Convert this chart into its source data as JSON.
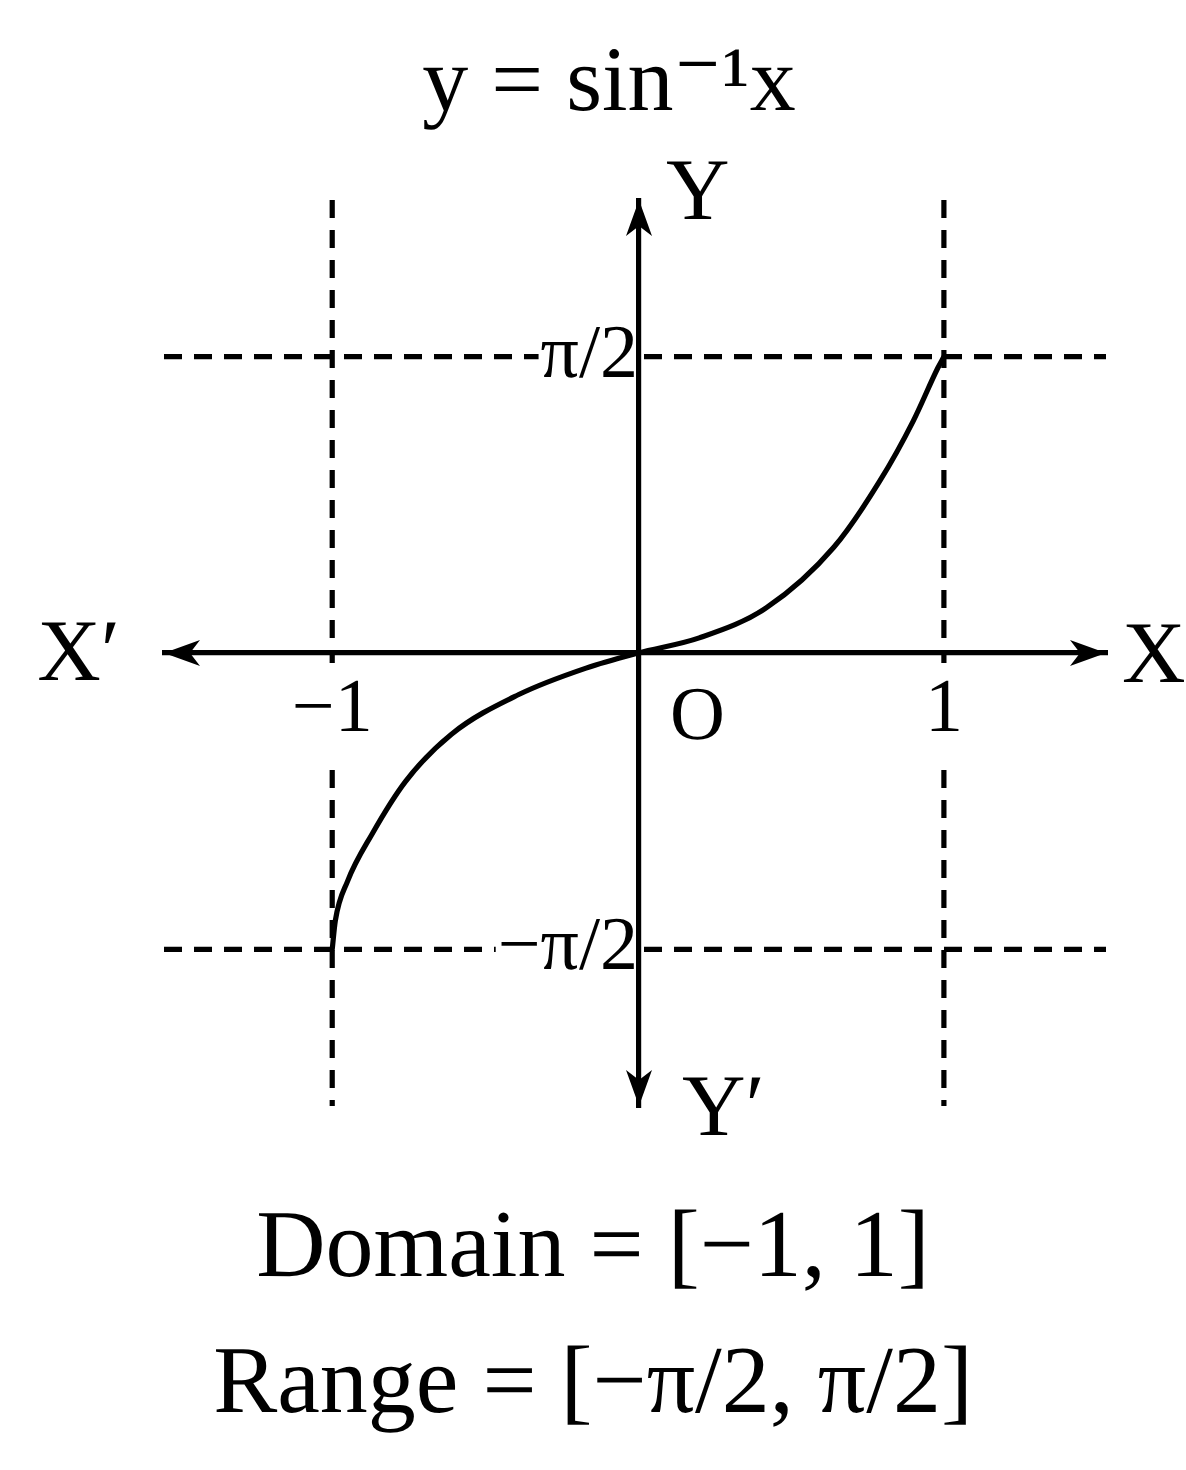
{
  "chart_data": {
    "type": "line",
    "title": "y = sin⁻¹x",
    "xlabel": "X",
    "ylabel": "Y",
    "annotations": [
      "X′",
      "Y′",
      "O",
      "Domain = [−1, 1]",
      "Range = [−π/2, π/2]"
    ],
    "series": [
      {
        "color": "#000000",
        "x": [
          -1,
          -0.99,
          -0.95,
          -0.87,
          -0.76,
          -0.61,
          -0.39,
          -0.17,
          0,
          0.2,
          0.42,
          0.64,
          0.79,
          0.9,
          0.98,
          1
        ],
        "values": [
          -1.57,
          -1.42,
          -1.21,
          -0.96,
          -0.68,
          -0.43,
          -0.22,
          -0.08,
          0,
          0.08,
          0.24,
          0.56,
          0.91,
          1.23,
          1.51,
          1.57
        ]
      }
    ],
    "xlim": [
      -1.55,
      1.53
    ],
    "ylim": [
      -2.4,
      2.4
    ],
    "xticks": [
      {
        "value": -1,
        "label": "−1"
      },
      1
    ],
    "yticks": [
      {
        "value": -1.57,
        "label": "−π/2"
      },
      {
        "value": 1.57,
        "label": "π/2"
      }
    ],
    "ref_lines": [
      {
        "axis": "x",
        "value": -1,
        "line_style": "dashed"
      },
      {
        "axis": "x",
        "value": 1,
        "line_style": "dashed"
      },
      {
        "axis": "y",
        "value": 1.57,
        "line_style": "dashed"
      },
      {
        "axis": "y",
        "value": -1.57,
        "line_style": "dashed"
      }
    ],
    "grid": false,
    "legend": false,
    "marker": "none",
    "line_style": "solid"
  }
}
